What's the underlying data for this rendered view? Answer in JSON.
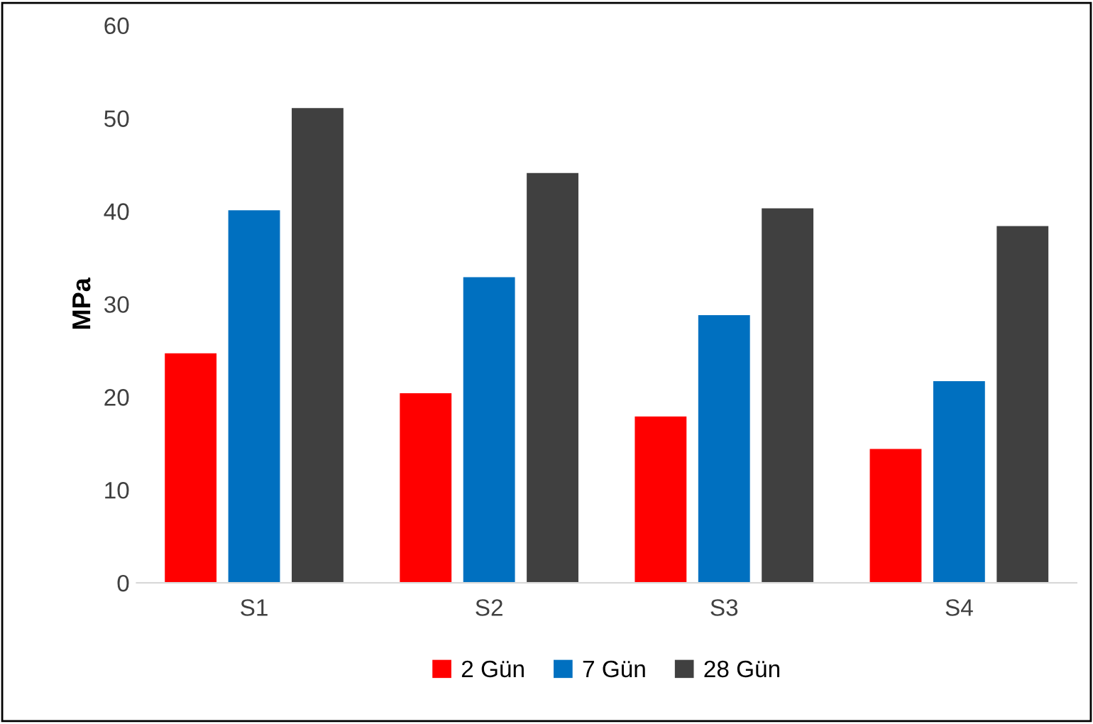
{
  "chart_data": {
    "type": "bar",
    "ylabel": "MPa",
    "categories": [
      "S1",
      "S2",
      "S3",
      "S4"
    ],
    "series": [
      {
        "name": "2 Gün",
        "color": "#ff0000",
        "values": [
          24.7,
          20.4,
          17.9,
          14.4
        ]
      },
      {
        "name": "7 Gün",
        "color": "#0070c0",
        "values": [
          40.1,
          32.9,
          28.8,
          21.7
        ]
      },
      {
        "name": "28 Gün",
        "color": "#404040",
        "values": [
          51.1,
          44.1,
          40.3,
          38.4
        ]
      }
    ],
    "ylim": [
      0,
      60
    ],
    "yticks": [
      0,
      10,
      20,
      30,
      40,
      50,
      60
    ],
    "grid": false,
    "legend": "bottom"
  }
}
